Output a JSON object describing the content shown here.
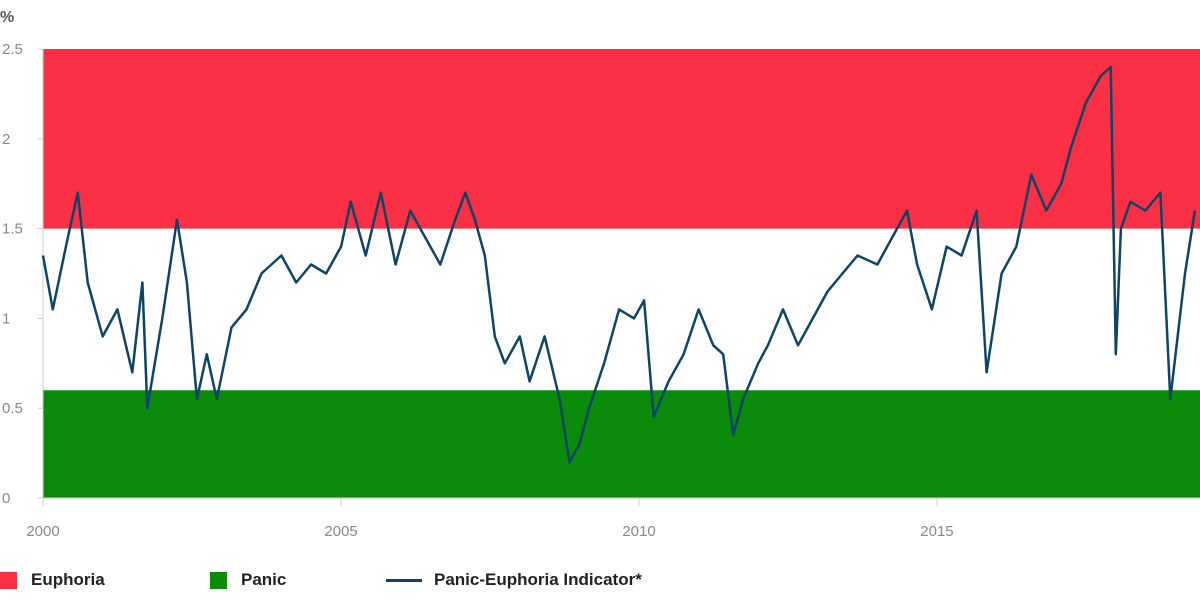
{
  "chart_data": {
    "type": "line",
    "ylabel": "%",
    "ylim": [
      0,
      2.5
    ],
    "xlim": [
      "2000-01-01",
      "2019-06-01"
    ],
    "x_ticks": [
      "2000",
      "2005",
      "2010",
      "2015"
    ],
    "y_ticks": [
      "0",
      "0.5",
      "1",
      "1.5",
      "2",
      "2.5"
    ],
    "bands": [
      {
        "name": "Euphoria",
        "from": 1.5,
        "to": 2.5,
        "color": "#fb3045"
      },
      {
        "name": "Panic",
        "from": 0,
        "to": 0.6,
        "color": "#0a8c0a"
      }
    ],
    "legend": [
      "Euphoria",
      "Panic",
      "Panic-Euphoria Indicator*"
    ],
    "series": [
      {
        "name": "Panic-Euphoria Indicator*",
        "color": "#0e4466",
        "x": [
          "2000-01",
          "2000-03",
          "2000-06",
          "2000-08",
          "2000-10",
          "2001-01",
          "2001-04",
          "2001-07",
          "2001-09",
          "2001-10",
          "2002-01",
          "2002-04",
          "2002-06",
          "2002-08",
          "2002-10",
          "2002-12",
          "2003-03",
          "2003-06",
          "2003-09",
          "2004-01",
          "2004-04",
          "2004-07",
          "2004-10",
          "2005-01",
          "2005-03",
          "2005-06",
          "2005-09",
          "2005-12",
          "2006-03",
          "2006-06",
          "2006-09",
          "2006-12",
          "2007-02",
          "2007-04",
          "2007-06",
          "2007-08",
          "2007-10",
          "2008-01",
          "2008-03",
          "2008-06",
          "2008-09",
          "2008-11",
          "2009-01",
          "2009-03",
          "2009-06",
          "2009-09",
          "2009-12",
          "2010-02",
          "2010-04",
          "2010-07",
          "2010-10",
          "2011-01",
          "2011-04",
          "2011-06",
          "2011-08",
          "2011-10",
          "2012-01",
          "2012-03",
          "2012-06",
          "2012-09",
          "2012-12",
          "2013-03",
          "2013-06",
          "2013-09",
          "2014-01",
          "2014-04",
          "2014-07",
          "2014-09",
          "2014-12",
          "2015-03",
          "2015-06",
          "2015-09",
          "2015-11",
          "2016-02",
          "2016-05",
          "2016-08",
          "2016-11",
          "2017-02",
          "2017-04",
          "2017-07",
          "2017-10",
          "2017-12",
          "2018-01",
          "2018-02",
          "2018-04",
          "2018-07",
          "2018-10",
          "2018-12",
          "2019-03",
          "2019-05"
        ],
        "values": [
          1.35,
          1.05,
          1.45,
          1.7,
          1.2,
          0.9,
          1.05,
          0.7,
          1.2,
          0.5,
          1.0,
          1.55,
          1.2,
          0.55,
          0.8,
          0.55,
          0.95,
          1.05,
          1.25,
          1.35,
          1.2,
          1.3,
          1.25,
          1.4,
          1.65,
          1.35,
          1.7,
          1.3,
          1.6,
          1.45,
          1.3,
          1.55,
          1.7,
          1.55,
          1.35,
          0.9,
          0.75,
          0.9,
          0.65,
          0.9,
          0.55,
          0.2,
          0.3,
          0.5,
          0.75,
          1.05,
          1.0,
          1.1,
          0.45,
          0.65,
          0.8,
          1.05,
          0.85,
          0.8,
          0.35,
          0.55,
          0.75,
          0.85,
          1.05,
          0.85,
          1.0,
          1.15,
          1.25,
          1.35,
          1.3,
          1.45,
          1.6,
          1.3,
          1.05,
          1.4,
          1.35,
          1.6,
          0.7,
          1.25,
          1.4,
          1.8,
          1.6,
          1.75,
          1.95,
          2.2,
          2.35,
          2.4,
          0.8,
          1.5,
          1.65,
          1.6,
          1.7,
          0.55,
          1.25,
          1.6
        ]
      }
    ]
  }
}
